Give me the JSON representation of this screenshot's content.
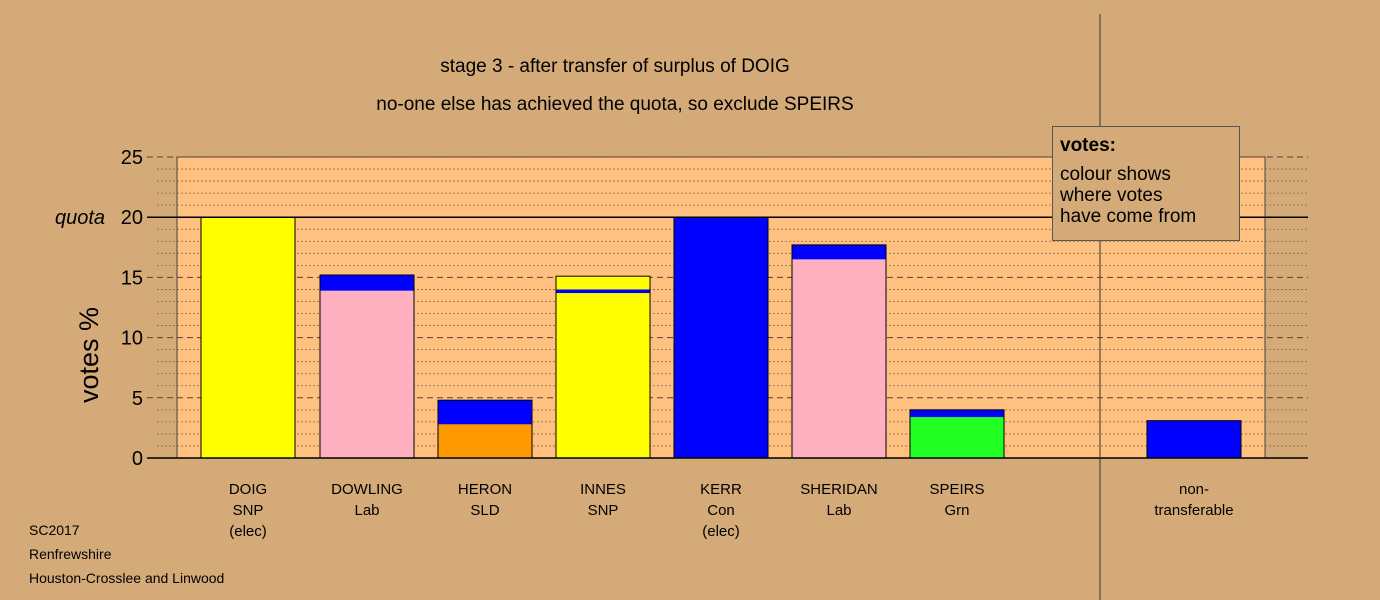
{
  "chart_data": {
    "type": "bar",
    "stacked": true,
    "title": "stage 3 - after transfer of surplus of DOIG",
    "subtitle": "no-one else has achieved the quota, so exclude SPEIRS",
    "ylabel": "votes %",
    "ylim": [
      0,
      25
    ],
    "yticks": [
      "0",
      "5",
      "10",
      "15",
      "20",
      "25"
    ],
    "quota_label": "quota",
    "quota_value": 20,
    "categories": [
      {
        "lines": [
          "DOIG",
          "SNP",
          "(elec)"
        ]
      },
      {
        "lines": [
          "DOWLING",
          "Lab"
        ]
      },
      {
        "lines": [
          "HERON",
          "SLD"
        ]
      },
      {
        "lines": [
          "INNES",
          "SNP"
        ]
      },
      {
        "lines": [
          "KERR",
          "Con",
          "(elec)"
        ]
      },
      {
        "lines": [
          "SHERIDAN",
          "Lab"
        ]
      },
      {
        "lines": [
          "SPEIRS",
          "Grn"
        ]
      },
      {
        "lines": []
      },
      {
        "lines": [
          "non-",
          "transferable"
        ]
      }
    ],
    "bars": [
      [
        {
          "value": 20.0,
          "color": "#ffff00"
        }
      ],
      [
        {
          "value": 13.9,
          "color": "#ffb0c0"
        },
        {
          "value": 1.3,
          "color": "#0000ff"
        }
      ],
      [
        {
          "value": 2.8,
          "color": "#ff9900"
        },
        {
          "value": 2.0,
          "color": "#0000ff"
        }
      ],
      [
        {
          "value": 13.7,
          "color": "#ffff00"
        },
        {
          "value": 0.3,
          "color": "#0000ff"
        },
        {
          "value": 1.1,
          "color": "#ffff00"
        }
      ],
      [
        {
          "value": 20.0,
          "color": "#0000ff"
        }
      ],
      [
        {
          "value": 16.5,
          "color": "#ffb0c0"
        },
        {
          "value": 1.2,
          "color": "#0000ff"
        }
      ],
      [
        {
          "value": 3.4,
          "color": "#22ff22"
        },
        {
          "value": 0.6,
          "color": "#0000ff"
        }
      ],
      [],
      [
        {
          "value": 3.1,
          "color": "#0000ff"
        }
      ]
    ],
    "legend": {
      "title": "votes:",
      "lines": [
        "colour shows",
        "where votes",
        "have come from"
      ],
      "placement": "top-right"
    },
    "grid": true,
    "colors": {
      "background": "#d4aa78",
      "plot_area": "#ffc080",
      "snp": "#ffff00",
      "lab": "#ffb0c0",
      "con": "#0000ff",
      "sld": "#ff9900",
      "grn": "#22ff22"
    }
  },
  "footer": {
    "line1": "SC2017",
    "line2": "Renfrewshire",
    "line3": "Houston-Crosslee and Linwood"
  }
}
